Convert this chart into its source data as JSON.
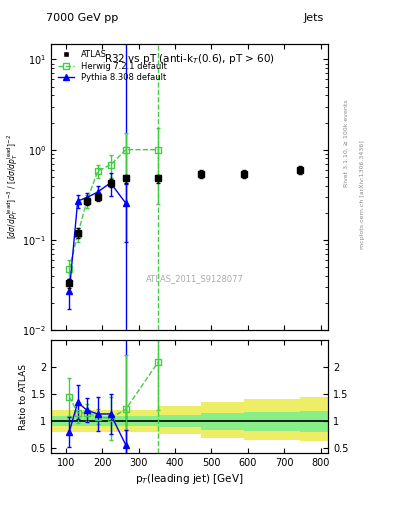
{
  "title_top": "7000 GeV pp",
  "title_right": "Jets",
  "plot_title": "R32 vs pT (anti-k$_T$(0.6), pT > 60)",
  "watermark": "ATLAS_2011_S9128077",
  "right_label_top": "Rivet 3.1.10, ≥ 100k events",
  "right_label_bot": "mcplots.cern.ch [arXiv:1306.3436]",
  "xlabel": "p$_T$(leading jet) [GeV]",
  "ylabel": "$[d\\sigma/dp_T^{\\rm lead}]^{-3}$ / $[d\\sigma/dp_T^{\\rm lead}]^{-2}$",
  "ylim_main": [
    0.01,
    15
  ],
  "xlim": [
    60,
    820
  ],
  "ratio_ylim": [
    0.4,
    2.5
  ],
  "atlas_x": [
    110,
    133,
    158,
    188,
    223,
    265,
    354,
    472,
    590,
    744
  ],
  "atlas_y": [
    0.033,
    0.12,
    0.27,
    0.3,
    0.43,
    0.48,
    0.48,
    0.54,
    0.54,
    0.6
  ],
  "atlas_ey": [
    0.004,
    0.014,
    0.025,
    0.03,
    0.04,
    0.05,
    0.05,
    0.055,
    0.055,
    0.06
  ],
  "herwig_x": [
    110,
    133,
    158,
    188,
    223,
    265,
    354
  ],
  "herwig_y": [
    0.048,
    0.115,
    0.27,
    0.58,
    0.68,
    1.0,
    1.0
  ],
  "herwig_ey": [
    0.012,
    0.02,
    0.045,
    0.1,
    0.2,
    0.55,
    0.75
  ],
  "pythia_x": [
    110,
    133,
    158,
    188,
    223,
    265
  ],
  "pythia_y": [
    0.027,
    0.27,
    0.295,
    0.34,
    0.43,
    0.255
  ],
  "pythia_ey": [
    0.01,
    0.045,
    0.04,
    0.055,
    0.12,
    0.16
  ],
  "herwig_ratio_x": [
    110,
    133,
    158,
    188,
    223,
    265,
    354
  ],
  "herwig_ratio_y": [
    1.45,
    1.15,
    1.15,
    1.08,
    1.05,
    1.22,
    2.1
  ],
  "herwig_ratio_ey": [
    0.35,
    0.18,
    0.16,
    0.14,
    0.4,
    1.0,
    0.9
  ],
  "pythia_ratio_x": [
    110,
    133,
    158,
    188,
    223,
    265
  ],
  "pythia_ratio_y": [
    0.8,
    1.35,
    1.2,
    1.13,
    1.13,
    0.55
  ],
  "pythia_ratio_ey": [
    0.28,
    0.32,
    0.22,
    0.32,
    0.38,
    0.28
  ],
  "band_edges": [
    60,
    188,
    265,
    354,
    472,
    590,
    744,
    820
  ],
  "band_inner_lo": [
    0.9,
    0.9,
    0.9,
    0.88,
    0.84,
    0.82,
    0.8
  ],
  "band_inner_hi": [
    1.1,
    1.1,
    1.1,
    1.12,
    1.14,
    1.16,
    1.18
  ],
  "band_outer_lo": [
    0.8,
    0.8,
    0.8,
    0.75,
    0.68,
    0.65,
    0.62
  ],
  "band_outer_hi": [
    1.2,
    1.2,
    1.2,
    1.28,
    1.35,
    1.4,
    1.45
  ],
  "vline_blue": 265,
  "vline_green": 354,
  "atlas_color": "black",
  "herwig_color": "#44cc44",
  "pythia_color": "blue",
  "band_inner_color": "#88ee88",
  "band_outer_color": "#eeee66"
}
